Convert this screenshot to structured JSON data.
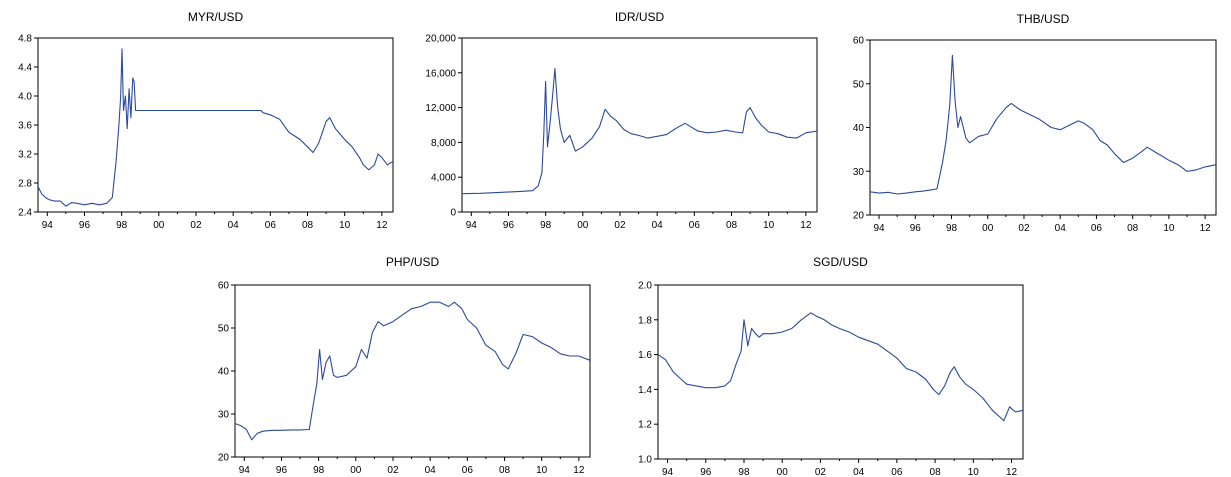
{
  "line_color": "#2b4a9b",
  "chart_data": [
    {
      "type": "line",
      "title": "MYR/USD",
      "xlabel": "",
      "ylabel": "",
      "xlim": [
        1993.5,
        2012.6
      ],
      "ylim": [
        2.4,
        4.8
      ],
      "y_ticks": [
        2.4,
        2.8,
        3.2,
        3.6,
        4.0,
        4.4,
        4.8
      ],
      "y_tick_labels": [
        "2.4",
        "2.8",
        "3.2",
        "3.6",
        "4.0",
        "4.4",
        "4.8"
      ],
      "x_ticks": [
        1994,
        1996,
        1998,
        2000,
        2002,
        2004,
        2006,
        2008,
        2010,
        2012
      ],
      "x_tick_labels": [
        "94",
        "96",
        "98",
        "00",
        "02",
        "04",
        "06",
        "08",
        "10",
        "12"
      ],
      "series": [
        {
          "x": [
            1993.5,
            1993.7,
            1993.9,
            1994.1,
            1994.4,
            1994.7,
            1995.0,
            1995.3,
            1995.6,
            1996.0,
            1996.4,
            1996.8,
            1997.2,
            1997.5,
            1997.7,
            1997.85,
            1997.95,
            1998.02,
            1998.1,
            1998.2,
            1998.3,
            1998.4,
            1998.5,
            1998.6,
            1998.67,
            1998.75,
            2000.0,
            2002.0,
            2004.0,
            2005.5,
            2005.6,
            2006.0,
            2006.5,
            2007.0,
            2007.3,
            2007.6,
            2008.0,
            2008.3,
            2008.6,
            2008.8,
            2009.0,
            2009.2,
            2009.5,
            2010.0,
            2010.4,
            2010.8,
            2011.0,
            2011.3,
            2011.6,
            2011.8,
            2012.0,
            2012.3,
            2012.6
          ],
          "y": [
            2.75,
            2.65,
            2.6,
            2.57,
            2.55,
            2.55,
            2.48,
            2.53,
            2.52,
            2.5,
            2.52,
            2.5,
            2.52,
            2.6,
            3.1,
            3.6,
            4.0,
            4.65,
            3.8,
            4.0,
            3.55,
            4.1,
            3.7,
            4.25,
            4.2,
            3.8,
            3.8,
            3.8,
            3.8,
            3.8,
            3.77,
            3.74,
            3.68,
            3.5,
            3.45,
            3.4,
            3.3,
            3.22,
            3.35,
            3.5,
            3.65,
            3.7,
            3.55,
            3.4,
            3.3,
            3.15,
            3.05,
            2.98,
            3.05,
            3.2,
            3.15,
            3.05,
            3.1
          ]
        }
      ]
    },
    {
      "type": "line",
      "title": "IDR/USD",
      "xlabel": "",
      "ylabel": "",
      "xlim": [
        1993.5,
        2012.6
      ],
      "ylim": [
        0,
        20000
      ],
      "y_ticks": [
        0,
        4000,
        8000,
        12000,
        16000,
        20000
      ],
      "y_tick_labels": [
        "0",
        "4,000",
        "8,000",
        "12,000",
        "16,000",
        "20,000"
      ],
      "x_ticks": [
        1994,
        1996,
        1998,
        2000,
        2002,
        2004,
        2006,
        2008,
        2010,
        2012
      ],
      "x_tick_labels": [
        "94",
        "96",
        "98",
        "00",
        "02",
        "04",
        "06",
        "08",
        "10",
        "12"
      ],
      "series": [
        {
          "x": [
            1993.5,
            1994.5,
            1995.5,
            1996.5,
            1997.3,
            1997.6,
            1997.8,
            1997.9,
            1998.0,
            1998.1,
            1998.25,
            1998.4,
            1998.5,
            1998.65,
            1998.8,
            1999.0,
            1999.3,
            1999.6,
            2000.0,
            2000.5,
            2000.9,
            2001.2,
            2001.5,
            2001.8,
            2002.2,
            2002.6,
            2003.0,
            2003.5,
            2004.0,
            2004.5,
            2005.0,
            2005.5,
            2005.8,
            2006.2,
            2006.7,
            2007.2,
            2007.7,
            2008.2,
            2008.6,
            2008.8,
            2009.0,
            2009.3,
            2009.6,
            2010.0,
            2010.5,
            2011.0,
            2011.5,
            2012.0,
            2012.6
          ],
          "y": [
            2100,
            2150,
            2250,
            2350,
            2450,
            3000,
            4500,
            9000,
            15000,
            7500,
            10500,
            14000,
            16500,
            12000,
            9500,
            8000,
            8800,
            7000,
            7500,
            8500,
            9800,
            11800,
            11000,
            10500,
            9500,
            9000,
            8800,
            8500,
            8700,
            8900,
            9600,
            10200,
            9800,
            9300,
            9100,
            9200,
            9400,
            9200,
            9100,
            11500,
            12000,
            10800,
            10000,
            9200,
            9000,
            8600,
            8500,
            9100,
            9300
          ]
        }
      ]
    },
    {
      "type": "line",
      "title": "THB/USD",
      "xlabel": "",
      "ylabel": "",
      "xlim": [
        1993.5,
        2012.6
      ],
      "ylim": [
        20,
        60
      ],
      "y_ticks": [
        20,
        30,
        40,
        50,
        60
      ],
      "y_tick_labels": [
        "20",
        "30",
        "40",
        "50",
        "60"
      ],
      "x_ticks": [
        1994,
        1996,
        1998,
        2000,
        2002,
        2004,
        2006,
        2008,
        2010,
        2012
      ],
      "x_tick_labels": [
        "94",
        "96",
        "98",
        "00",
        "02",
        "04",
        "06",
        "08",
        "10",
        "12"
      ],
      "series": [
        {
          "x": [
            1993.5,
            1994.0,
            1994.5,
            1995.0,
            1995.5,
            1996.0,
            1996.5,
            1997.0,
            1997.2,
            1997.5,
            1997.7,
            1997.9,
            1998.05,
            1998.2,
            1998.35,
            1998.5,
            1998.8,
            1999.0,
            1999.5,
            2000.0,
            2000.5,
            2001.0,
            2001.3,
            2001.8,
            2002.3,
            2002.8,
            2003.5,
            2004.0,
            2004.5,
            2005.0,
            2005.3,
            2005.8,
            2006.2,
            2006.6,
            2007.0,
            2007.5,
            2008.0,
            2008.5,
            2008.8,
            2009.2,
            2009.6,
            2010.0,
            2010.5,
            2011.0,
            2011.5,
            2012.0,
            2012.6
          ],
          "y": [
            25.3,
            25.0,
            25.2,
            24.8,
            25.0,
            25.3,
            25.5,
            25.8,
            26.0,
            32.0,
            37.0,
            45.0,
            56.5,
            46.0,
            40.0,
            42.5,
            37.5,
            36.5,
            38.0,
            38.5,
            42.0,
            44.5,
            45.5,
            44.0,
            43.0,
            42.0,
            40.0,
            39.5,
            40.5,
            41.5,
            41.0,
            39.5,
            37.0,
            36.0,
            34.0,
            32.0,
            33.0,
            34.5,
            35.5,
            34.5,
            33.5,
            32.5,
            31.5,
            30.0,
            30.3,
            31.0,
            31.5
          ]
        }
      ]
    },
    {
      "type": "line",
      "title": "PHP/USD",
      "xlabel": "",
      "ylabel": "",
      "xlim": [
        1993.5,
        2012.6
      ],
      "ylim": [
        20,
        60
      ],
      "y_ticks": [
        20,
        30,
        40,
        50,
        60
      ],
      "y_tick_labels": [
        "20",
        "30",
        "40",
        "50",
        "60"
      ],
      "x_ticks": [
        1994,
        1996,
        1998,
        2000,
        2002,
        2004,
        2006,
        2008,
        2010,
        2012
      ],
      "x_tick_labels": [
        "94",
        "96",
        "98",
        "00",
        "02",
        "04",
        "06",
        "08",
        "10",
        "12"
      ],
      "series": [
        {
          "x": [
            1993.5,
            1993.8,
            1994.1,
            1994.4,
            1994.7,
            1995.0,
            1995.5,
            1996.0,
            1996.5,
            1997.0,
            1997.5,
            1997.7,
            1997.9,
            1998.05,
            1998.2,
            1998.4,
            1998.6,
            1998.8,
            1999.0,
            1999.5,
            2000.0,
            2000.3,
            2000.6,
            2000.9,
            2001.2,
            2001.5,
            2002.0,
            2002.5,
            2003.0,
            2003.5,
            2004.0,
            2004.5,
            2005.0,
            2005.3,
            2005.7,
            2006.0,
            2006.5,
            2007.0,
            2007.5,
            2007.9,
            2008.2,
            2008.6,
            2009.0,
            2009.5,
            2010.0,
            2010.5,
            2011.0,
            2011.5,
            2012.0,
            2012.6
          ],
          "y": [
            27.8,
            27.3,
            26.5,
            24.0,
            25.5,
            26.0,
            26.2,
            26.2,
            26.3,
            26.3,
            26.4,
            32.0,
            37.0,
            45.0,
            38.0,
            42.0,
            43.5,
            39.0,
            38.5,
            39.0,
            41.0,
            45.0,
            43.0,
            49.0,
            51.5,
            50.5,
            51.5,
            53.0,
            54.5,
            55.0,
            56.0,
            56.0,
            55.0,
            56.0,
            54.5,
            52.0,
            50.0,
            46.0,
            44.5,
            41.5,
            40.5,
            44.0,
            48.5,
            48.0,
            46.5,
            45.5,
            44.0,
            43.5,
            43.5,
            42.5
          ]
        }
      ]
    },
    {
      "type": "line",
      "title": "SGD/USD",
      "xlabel": "",
      "ylabel": "",
      "xlim": [
        1993.5,
        2012.6
      ],
      "ylim": [
        1.0,
        2.0
      ],
      "y_ticks": [
        1.0,
        1.2,
        1.4,
        1.6,
        1.8,
        2.0
      ],
      "y_tick_labels": [
        "1.0",
        "1.2",
        "1.4",
        "1.6",
        "1.8",
        "2.0"
      ],
      "x_ticks": [
        1994,
        1996,
        1998,
        2000,
        2002,
        2004,
        2006,
        2008,
        2010,
        2012
      ],
      "x_tick_labels": [
        "94",
        "96",
        "98",
        "00",
        "02",
        "04",
        "06",
        "08",
        "10",
        "12"
      ],
      "series": [
        {
          "x": [
            1993.5,
            1993.9,
            1994.3,
            1994.7,
            1995.0,
            1995.5,
            1996.0,
            1996.5,
            1997.0,
            1997.3,
            1997.6,
            1997.85,
            1998.0,
            1998.2,
            1998.4,
            1998.6,
            1998.8,
            1999.0,
            1999.5,
            2000.0,
            2000.5,
            2001.0,
            2001.5,
            2001.8,
            2002.2,
            2002.6,
            2003.0,
            2003.5,
            2004.0,
            2004.5,
            2005.0,
            2005.5,
            2006.0,
            2006.5,
            2007.0,
            2007.5,
            2007.9,
            2008.2,
            2008.5,
            2008.8,
            2009.0,
            2009.3,
            2009.6,
            2010.0,
            2010.5,
            2011.0,
            2011.3,
            2011.6,
            2011.9,
            2012.2,
            2012.6
          ],
          "y": [
            1.6,
            1.57,
            1.5,
            1.46,
            1.43,
            1.42,
            1.41,
            1.41,
            1.42,
            1.45,
            1.55,
            1.62,
            1.8,
            1.65,
            1.75,
            1.72,
            1.7,
            1.72,
            1.72,
            1.73,
            1.75,
            1.8,
            1.84,
            1.82,
            1.8,
            1.77,
            1.75,
            1.73,
            1.7,
            1.68,
            1.66,
            1.62,
            1.58,
            1.52,
            1.5,
            1.46,
            1.4,
            1.37,
            1.42,
            1.5,
            1.53,
            1.47,
            1.43,
            1.4,
            1.35,
            1.28,
            1.25,
            1.22,
            1.3,
            1.27,
            1.28
          ]
        }
      ]
    }
  ]
}
